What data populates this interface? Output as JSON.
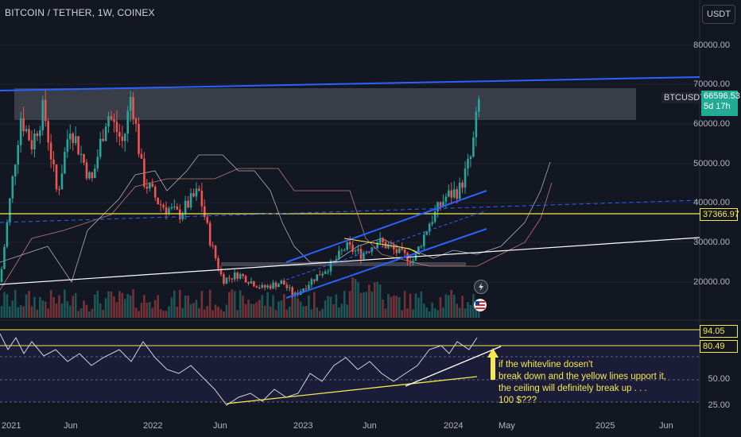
{
  "header": {
    "ticker": "BITCOIN / TETHER, 1W, COINEX",
    "currency_button": "USDT"
  },
  "price_axis": [
    "80000.00",
    "70000.00",
    "60000.00",
    "50000.00",
    "40000.00",
    "30000.00",
    "20000.00"
  ],
  "price_tags": {
    "symbol": "BTCUSDT",
    "last_price": "66596.53",
    "countdown": "5d 17h",
    "level_line": "37366.97"
  },
  "rsi_axis": [
    "50.00",
    "25.00"
  ],
  "rsi_tags": {
    "upper": "94.05",
    "lower": "80.49"
  },
  "time_axis": [
    "2021",
    "Jun",
    "2022",
    "Jun",
    "2023",
    "Jun",
    "2024",
    "May",
    "2025",
    "Jun"
  ],
  "annotation_lines": [
    "if the whitevline dosen't",
    "break down and the yellow lines upport it,",
    "the ceiling will definitely break up . . .",
    "100 $???"
  ],
  "icons": [
    "lightning-icon",
    "us-flag-icon"
  ],
  "colors": {
    "background": "#131722",
    "up": "#26a69a",
    "down": "#ef5350",
    "trend_blue": "#2962ff",
    "level_yellow": "#f5e94f",
    "trend_white": "#ffffff"
  },
  "chart_data": {
    "type": "candlestick",
    "symbol": "BTCUSDT",
    "interval": "1W",
    "x": [
      "2021",
      "Jun",
      "2022",
      "Jun",
      "2023",
      "Jun",
      "2024"
    ],
    "close": [
      33000,
      36000,
      47000,
      19500,
      16600,
      30500,
      42500
    ],
    "last_close": 66596.53,
    "ylim": [
      10000,
      90000
    ],
    "horizontal_levels": [
      37366.97
    ],
    "rsi": {
      "upper_level": 94.05,
      "lower_level": 80.49,
      "ylim": [
        20,
        100
      ]
    }
  }
}
